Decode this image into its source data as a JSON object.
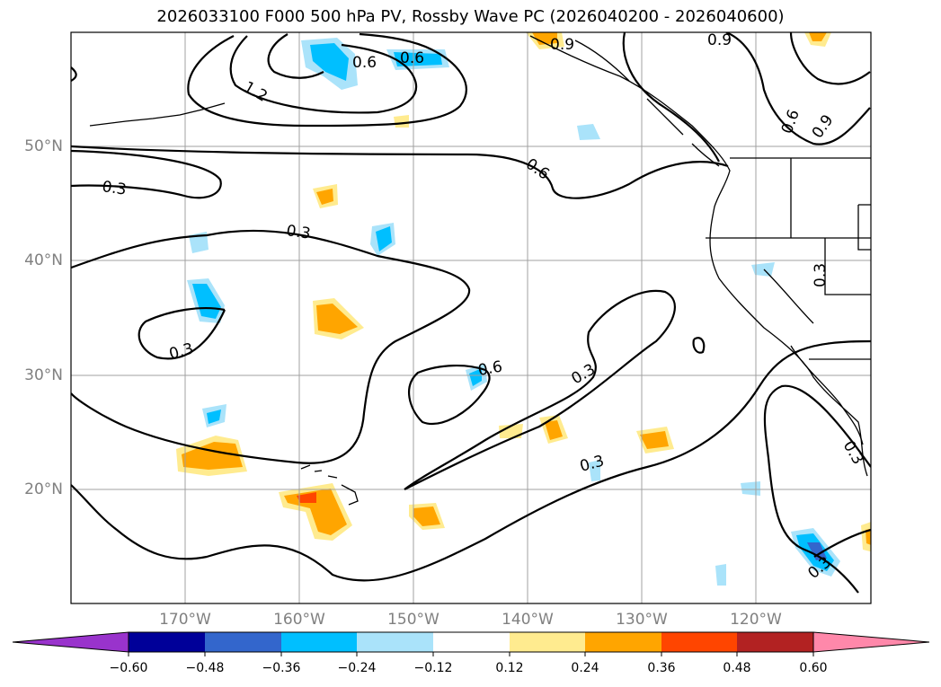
{
  "title": "2026033100 F000 500 hPa PV, Rossby Wave PC (2026040200 - 2026040600)",
  "lat_labels": [
    "50°N",
    "40°N",
    "30°N",
    "20°N"
  ],
  "lon_labels": [
    "170°W",
    "160°W",
    "150°W",
    "140°W",
    "130°W",
    "120°W"
  ],
  "contour_labels": [
    "0.3",
    "0.3",
    "0.3",
    "0.3",
    "0.3",
    "0.3",
    "0.6",
    "0.6",
    "0.6",
    "0.6",
    "0.9",
    "0.9",
    "0.6",
    "0.3",
    "0.3",
    "1.2",
    "0.9"
  ],
  "colorbar": {
    "ticks": [
      "−0.60",
      "−0.48",
      "−0.36",
      "−0.24",
      "−0.12",
      "0.12",
      "0.24",
      "0.36",
      "0.48",
      "0.60"
    ],
    "colors": [
      "#9933cc",
      "#000099",
      "#3366cc",
      "#00bfff",
      "#aae3fa",
      "#ffffff",
      "#ffeb8f",
      "#ffa500",
      "#ff4500",
      "#b22222",
      "#ff88aa"
    ]
  },
  "colors": {
    "frame": "#000000",
    "grid": "#a0a0a0",
    "coast": "#000000"
  }
}
